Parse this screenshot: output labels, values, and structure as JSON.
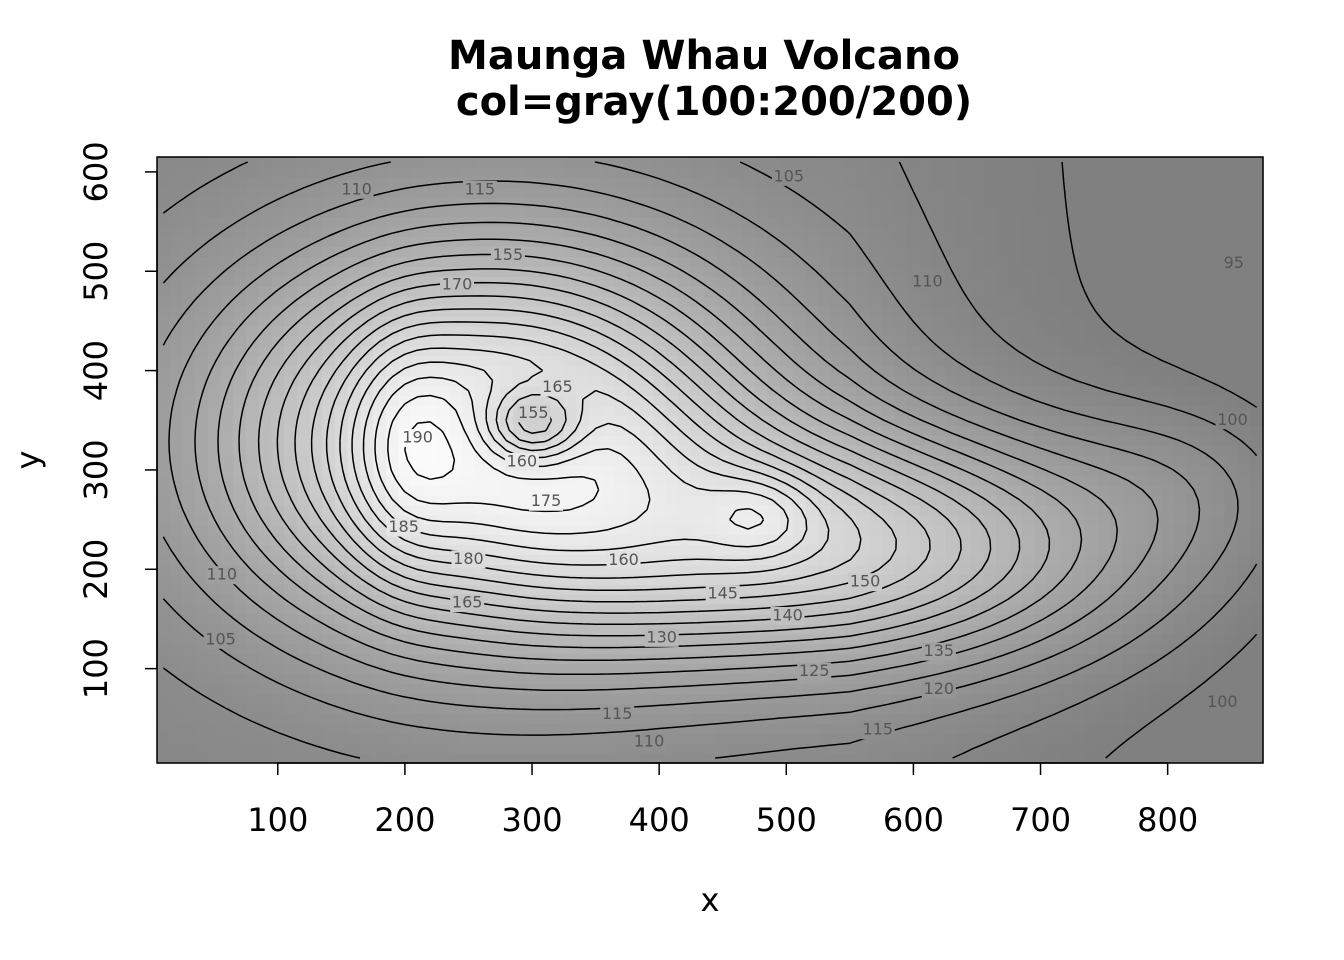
{
  "chart_data": {
    "type": "contour",
    "title": "Maunga Whau Volcano",
    "subtitle": "col=gray(100:200/200)",
    "xlabel": "x",
    "ylabel": "y",
    "xlim": [
      5,
      875
    ],
    "ylim": [
      5,
      615
    ],
    "xticks": [
      100,
      200,
      300,
      400,
      500,
      600,
      700,
      800
    ],
    "yticks": [
      100,
      200,
      300,
      400,
      500,
      600
    ],
    "colormap": "gray",
    "levels": [
      95,
      100,
      105,
      110,
      115,
      120,
      125,
      130,
      135,
      140,
      145,
      150,
      155,
      160,
      165,
      170,
      175,
      180,
      185,
      190
    ],
    "contour_labels": [
      {
        "level": 110,
        "x": 162,
        "y": 582
      },
      {
        "level": 115,
        "x": 259,
        "y": 582
      },
      {
        "level": 105,
        "x": 502,
        "y": 595
      },
      {
        "level": 155,
        "x": 281,
        "y": 516
      },
      {
        "level": 170,
        "x": 241,
        "y": 486
      },
      {
        "level": 110,
        "x": 611,
        "y": 489
      },
      {
        "level": 95,
        "x": 852,
        "y": 508
      },
      {
        "level": 165,
        "x": 320,
        "y": 383
      },
      {
        "level": 155,
        "x": 301,
        "y": 357
      },
      {
        "level": 190,
        "x": 210,
        "y": 332
      },
      {
        "level": 160,
        "x": 292,
        "y": 308
      },
      {
        "level": 100,
        "x": 851,
        "y": 350
      },
      {
        "level": 175,
        "x": 311,
        "y": 268
      },
      {
        "level": 185,
        "x": 199,
        "y": 242
      },
      {
        "level": 180,
        "x": 250,
        "y": 210
      },
      {
        "level": 160,
        "x": 372,
        "y": 209
      },
      {
        "level": 110,
        "x": 56,
        "y": 194
      },
      {
        "level": 150,
        "x": 562,
        "y": 187
      },
      {
        "level": 165,
        "x": 249,
        "y": 166
      },
      {
        "level": 145,
        "x": 450,
        "y": 175
      },
      {
        "level": 140,
        "x": 501,
        "y": 153
      },
      {
        "level": 105,
        "x": 55,
        "y": 129
      },
      {
        "level": 130,
        "x": 402,
        "y": 131
      },
      {
        "level": 135,
        "x": 620,
        "y": 117
      },
      {
        "level": 125,
        "x": 522,
        "y": 97
      },
      {
        "level": 120,
        "x": 620,
        "y": 79
      },
      {
        "level": 100,
        "x": 843,
        "y": 66
      },
      {
        "level": 115,
        "x": 367,
        "y": 54
      },
      {
        "level": 115,
        "x": 572,
        "y": 38
      },
      {
        "level": 110,
        "x": 392,
        "y": 26
      }
    ]
  }
}
